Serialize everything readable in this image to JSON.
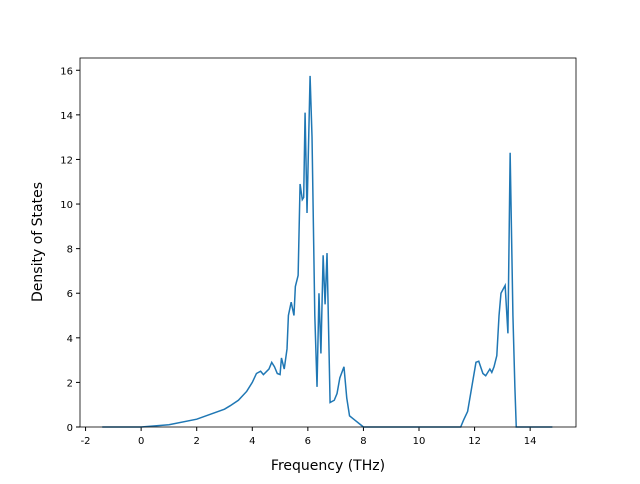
{
  "chart_data": {
    "type": "line",
    "xlabel": "Frequency (THz)",
    "ylabel": "Density of States",
    "xlim": [
      -2.2,
      15.65
    ],
    "ylim": [
      0,
      16.55
    ],
    "xticks": [
      -2,
      0,
      2,
      4,
      6,
      8,
      10,
      12,
      14
    ],
    "yticks": [
      0,
      2,
      4,
      6,
      8,
      10,
      12,
      14,
      16
    ],
    "series": [
      {
        "color": "#1f77b4",
        "x": [
          -1.4,
          0,
          1,
          2,
          3,
          3.2,
          3.5,
          3.8,
          4.0,
          4.15,
          4.3,
          4.4,
          4.6,
          4.7,
          4.8,
          4.9,
          5.0,
          5.05,
          5.15,
          5.25,
          5.3,
          5.4,
          5.5,
          5.55,
          5.65,
          5.72,
          5.8,
          5.85,
          5.9,
          5.97,
          6.08,
          6.15,
          6.25,
          6.33,
          6.4,
          6.47,
          6.55,
          6.62,
          6.69,
          6.8,
          6.95,
          7.05,
          7.15,
          7.3,
          7.4,
          7.5,
          7.7,
          7.9,
          8.0,
          11.5,
          11.6,
          11.75,
          11.9,
          12.05,
          12.15,
          12.3,
          12.4,
          12.55,
          12.62,
          12.7,
          12.8,
          12.88,
          12.95,
          13.1,
          13.2,
          13.28,
          13.38,
          13.45,
          13.5,
          14.8
        ],
        "values": [
          0,
          0,
          0.1,
          0.35,
          0.8,
          0.95,
          1.2,
          1.6,
          2.0,
          2.4,
          2.5,
          2.35,
          2.6,
          2.9,
          2.7,
          2.4,
          2.35,
          3.1,
          2.6,
          3.5,
          5.0,
          5.6,
          5.0,
          6.3,
          6.8,
          10.9,
          10.2,
          10.3,
          14.1,
          9.6,
          15.75,
          13.0,
          5.0,
          1.8,
          6.0,
          3.3,
          7.7,
          5.5,
          7.8,
          1.1,
          1.2,
          1.5,
          2.2,
          2.7,
          1.3,
          0.5,
          0.3,
          0.1,
          0,
          0,
          0.3,
          0.7,
          1.8,
          2.9,
          2.95,
          2.4,
          2.3,
          2.6,
          2.45,
          2.7,
          3.2,
          5.0,
          6.0,
          6.35,
          4.2,
          12.3,
          5.0,
          1.8,
          0,
          0
        ]
      }
    ]
  }
}
